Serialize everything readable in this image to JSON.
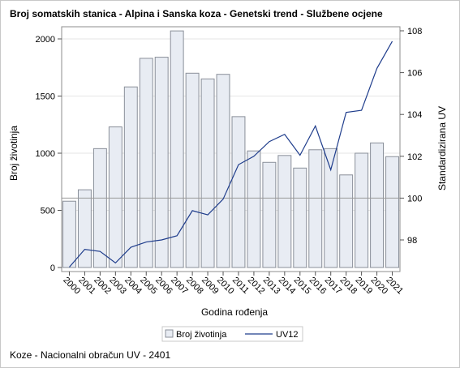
{
  "chart_data": {
    "type": "bar",
    "title": "Broj somatskih stanica - Alpina i Sanska koza - Genetski trend - Službene ocjene",
    "xlabel": "Godina rođenja",
    "ylabel": "Broj životinja",
    "y2label": "Standardizirana UV",
    "footnote": "Koze - Nacionalni obračun UV - 2401",
    "categories": [
      "2000",
      "2001",
      "2002",
      "2003",
      "2004",
      "2005",
      "2006",
      "2007",
      "2008",
      "2009",
      "2010",
      "2011",
      "2012",
      "2013",
      "2014",
      "2015",
      "2016",
      "2017",
      "2018",
      "2019",
      "2020",
      "2021"
    ],
    "ylim": [
      0,
      2100
    ],
    "yticks": [
      0,
      500,
      1000,
      1500,
      2000
    ],
    "y2lim": [
      96.6,
      108.2
    ],
    "y2ticks": [
      98,
      100,
      102,
      104,
      106,
      108
    ],
    "reference_line_y2": 100,
    "grid": true,
    "legend_position": "bottom",
    "series": [
      {
        "name": "Broj životinja",
        "type": "bar",
        "axis": "left",
        "color": "#e8ecf3",
        "stroke": "#8a8f99",
        "values": [
          580,
          680,
          1040,
          1230,
          1580,
          1830,
          1840,
          2070,
          1700,
          1650,
          1690,
          1320,
          1020,
          920,
          980,
          870,
          1030,
          1040,
          810,
          1000,
          1090,
          970
        ]
      },
      {
        "name": "UV12",
        "type": "line",
        "axis": "right",
        "color": "#1f3d8c",
        "values": [
          96.7,
          97.55,
          97.45,
          96.9,
          97.65,
          97.9,
          98.0,
          98.2,
          99.4,
          99.2,
          99.95,
          101.6,
          102.0,
          102.7,
          103.05,
          102.05,
          103.45,
          101.35,
          104.1,
          104.2,
          106.2,
          107.5
        ]
      }
    ]
  }
}
